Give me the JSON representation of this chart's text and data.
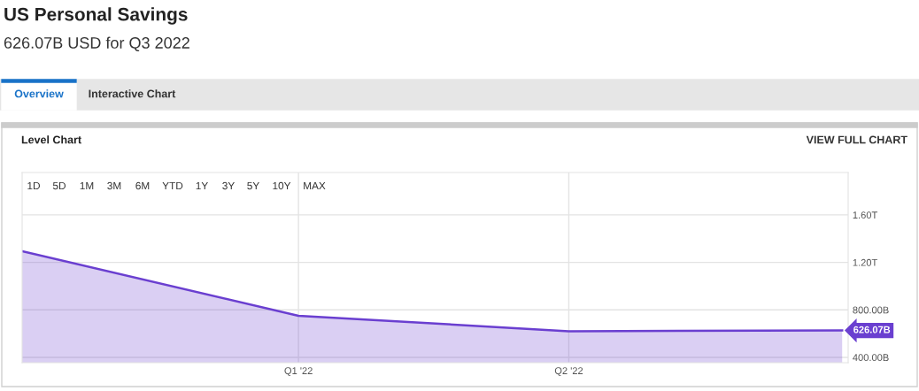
{
  "chart_data": {
    "type": "area",
    "title": "US Personal Savings",
    "subtitle": "626.07B USD for Q3 2022",
    "annotations": [
      "Overview",
      "Interactive Chart",
      "Level Chart",
      "VIEW FULL CHART",
      "1D",
      "5D",
      "1M",
      "3M",
      "6M",
      "YTD",
      "1Y",
      "3Y",
      "5Y",
      "10Y",
      "MAX"
    ],
    "x": [
      "2021-10-01",
      "2022-01-01",
      "2022-04-01",
      "2022-07-01"
    ],
    "series": [
      {
        "color": "#6a3fd0",
        "values": [
          1294000000000,
          750000000000,
          620000000000,
          626070000000
        ],
        "value_labels": [
          null,
          null,
          null,
          "626.07B"
        ]
      }
    ],
    "xlim": [
      "2021-10-01",
      "2022-07-03"
    ],
    "xticks": [
      {
        "value": "2022-01-01",
        "label": "Q1 '22"
      },
      {
        "value": "2022-04-01",
        "label": "Q2 '22"
      }
    ],
    "ylim": [
      355000000000,
      1957000000000
    ],
    "yticks": [
      {
        "value": 400000000000,
        "label": "400.00B"
      },
      {
        "value": 800000000000,
        "label": "800.00B"
      },
      {
        "value": 1200000000000,
        "label": "1.20T"
      },
      {
        "value": 1600000000000,
        "label": "1.60T"
      }
    ],
    "grid": true
  }
}
